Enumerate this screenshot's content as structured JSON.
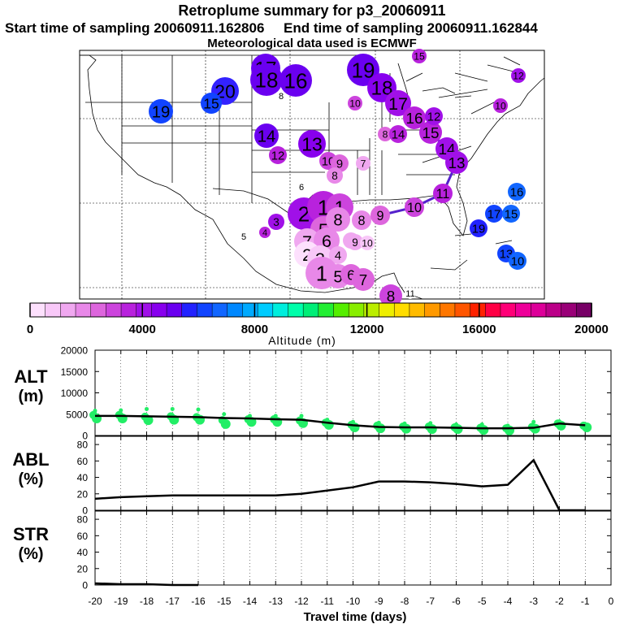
{
  "header": {
    "title": "Retroplume summary for p3_20060911",
    "start_label": "Start time of sampling 20060911.162806",
    "end_label": "End time of sampling 20060911.162844",
    "met_label": "Meteorological data used is ECMWF"
  },
  "colorbar": {
    "ticks": [
      "0",
      "4000",
      "8000",
      "12000",
      "16000",
      "20000"
    ],
    "label": "Altitude (m)",
    "colors": [
      "#fde0fd",
      "#f8c8f8",
      "#f0a8f0",
      "#e888e8",
      "#dd66dd",
      "#cc44dd",
      "#b822dd",
      "#a010e8",
      "#8800ee",
      "#6a00f0",
      "#2222ff",
      "#1144ff",
      "#1166ff",
      "#0088ff",
      "#00aaff",
      "#00ccff",
      "#00eedd",
      "#00ffaa",
      "#00ee77",
      "#22ee33",
      "#55ee00",
      "#88ee00",
      "#bbee00",
      "#eeee00",
      "#ffdd00",
      "#ffbb00",
      "#ff9900",
      "#ff7700",
      "#ff5500",
      "#ff2200",
      "#ff0044",
      "#ff0077",
      "#ee0099",
      "#dd0099",
      "#bb0088",
      "#990077",
      "#770066"
    ]
  },
  "map": {
    "track_points": [
      {
        "label": "19",
        "x": 447,
        "y": 86,
        "r": 20,
        "color": "#6a00f0"
      },
      {
        "label": "18",
        "x": 470,
        "y": 108,
        "r": 18,
        "color": "#8800ee"
      },
      {
        "label": "17",
        "x": 490,
        "y": 127,
        "r": 16,
        "color": "#a010e8"
      },
      {
        "label": "16",
        "x": 510,
        "y": 145,
        "r": 14,
        "color": "#b822dd"
      },
      {
        "label": "15",
        "x": 530,
        "y": 163,
        "r": 14,
        "color": "#b822dd"
      },
      {
        "label": "14",
        "x": 550,
        "y": 183,
        "r": 14,
        "color": "#a010e8"
      },
      {
        "label": "13",
        "x": 562,
        "y": 200,
        "r": 14,
        "color": "#a010e8"
      },
      {
        "label": "11",
        "x": 545,
        "y": 238,
        "r": 12,
        "color": "#b822dd"
      },
      {
        "label": "10",
        "x": 510,
        "y": 255,
        "r": 12,
        "color": "#cc44dd"
      },
      {
        "label": "9",
        "x": 468,
        "y": 265,
        "r": 12,
        "color": "#dd66dd"
      },
      {
        "label": "8",
        "x": 445,
        "y": 271,
        "r": 12,
        "color": "#e888e8"
      }
    ],
    "dots": [
      {
        "label": "17",
        "x": 327,
        "y": 84,
        "r": 18,
        "color": "#6a00f0"
      },
      {
        "label": "18",
        "x": 328,
        "y": 98,
        "r": 20,
        "color": "#6a00f0"
      },
      {
        "label": "16",
        "x": 364,
        "y": 99,
        "r": 20,
        "color": "#6a00f0"
      },
      {
        "label": "20",
        "x": 277,
        "y": 112,
        "r": 17,
        "color": "#3322ff"
      },
      {
        "label": "15",
        "x": 260,
        "y": 127,
        "r": 13,
        "color": "#1144ff"
      },
      {
        "label": "19",
        "x": 198,
        "y": 137,
        "r": 15,
        "color": "#1144ff"
      },
      {
        "label": "8",
        "x": 346,
        "y": 118,
        "r": 4,
        "color": "#ffffff"
      },
      {
        "label": "14",
        "x": 328,
        "y": 167,
        "r": 15,
        "color": "#6a00f0"
      },
      {
        "label": "13",
        "x": 384,
        "y": 177,
        "r": 17,
        "color": "#8800ee"
      },
      {
        "label": "12",
        "x": 342,
        "y": 191,
        "r": 11,
        "color": "#b822dd"
      },
      {
        "label": "10",
        "x": 404,
        "y": 198,
        "r": 11,
        "color": "#cc44dd"
      },
      {
        "label": "9",
        "x": 418,
        "y": 201,
        "r": 11,
        "color": "#dd66dd"
      },
      {
        "label": "8",
        "x": 412,
        "y": 216,
        "r": 10,
        "color": "#e888e8"
      },
      {
        "label": "7",
        "x": 447,
        "y": 201,
        "r": 9,
        "color": "#f0a8f0"
      },
      {
        "label": "6",
        "x": 371,
        "y": 230,
        "r": 5,
        "color": "#ffffff"
      },
      {
        "label": "10",
        "x": 437,
        "y": 127,
        "r": 9,
        "color": "#cc44dd"
      },
      {
        "label": "15",
        "x": 516,
        "y": 69,
        "r": 9,
        "color": "#b822dd"
      },
      {
        "label": "12",
        "x": 638,
        "y": 93,
        "r": 9,
        "color": "#a010e8"
      },
      {
        "label": "10",
        "x": 616,
        "y": 130,
        "r": 9,
        "color": "#b822dd"
      },
      {
        "label": "12",
        "x": 534,
        "y": 143,
        "r": 11,
        "color": "#a010e8"
      },
      {
        "label": "8",
        "x": 474,
        "y": 165,
        "r": 9,
        "color": "#dd66dd"
      },
      {
        "label": "14",
        "x": 490,
        "y": 165,
        "r": 11,
        "color": "#b822dd"
      },
      {
        "label": "16",
        "x": 636,
        "y": 236,
        "r": 11,
        "color": "#1166ff"
      },
      {
        "label": "17",
        "x": 608,
        "y": 263,
        "r": 11,
        "color": "#1144ff"
      },
      {
        "label": "15",
        "x": 629,
        "y": 263,
        "r": 11,
        "color": "#1166ff"
      },
      {
        "label": "19",
        "x": 589,
        "y": 281,
        "r": 11,
        "color": "#2222ff"
      },
      {
        "label": "13",
        "x": 623,
        "y": 312,
        "r": 11,
        "color": "#1144ff"
      },
      {
        "label": "10",
        "x": 637,
        "y": 321,
        "r": 11,
        "color": "#1166ff"
      },
      {
        "label": "2",
        "x": 374,
        "y": 263,
        "r": 20,
        "color": "#a010e8"
      },
      {
        "label": "1",
        "x": 398,
        "y": 255,
        "r": 20,
        "color": "#b822dd"
      },
      {
        "label": "1",
        "x": 418,
        "y": 255,
        "r": 17,
        "color": "#cc44dd"
      },
      {
        "label": "5",
        "x": 398,
        "y": 282,
        "r": 16,
        "color": "#dd66dd"
      },
      {
        "label": "8",
        "x": 416,
        "y": 270,
        "r": 15,
        "color": "#e888e8"
      },
      {
        "label": "3",
        "x": 340,
        "y": 273,
        "r": 10,
        "color": "#a010e8"
      },
      {
        "label": "4",
        "x": 326,
        "y": 286,
        "r": 7,
        "color": "#b822dd"
      },
      {
        "label": "5",
        "x": 300,
        "y": 291,
        "r": 5,
        "color": "#ffffff"
      },
      {
        "label": "7",
        "x": 378,
        "y": 297,
        "r": 16,
        "color": "#f0a8f0"
      },
      {
        "label": "6",
        "x": 402,
        "y": 296,
        "r": 16,
        "color": "#e888e8"
      },
      {
        "label": "8",
        "x": 432,
        "y": 296,
        "r": 10,
        "color": "#f0a8f0"
      },
      {
        "label": "9",
        "x": 437,
        "y": 298,
        "r": 10,
        "color": "#f0a8f0"
      },
      {
        "label": "10",
        "x": 452,
        "y": 299,
        "r": 9,
        "color": "#f8c8f8"
      },
      {
        "label": "2",
        "x": 378,
        "y": 313,
        "r": 16,
        "color": "#fde0fd"
      },
      {
        "label": "3",
        "x": 394,
        "y": 318,
        "r": 16,
        "color": "#f8c8f8"
      },
      {
        "label": "4",
        "x": 416,
        "y": 314,
        "r": 11,
        "color": "#f0a8f0"
      },
      {
        "label": "1",
        "x": 396,
        "y": 336,
        "r": 20,
        "color": "#e888e8"
      },
      {
        "label": "5",
        "x": 416,
        "y": 340,
        "r": 15,
        "color": "#e888e8"
      },
      {
        "label": "6",
        "x": 432,
        "y": 338,
        "r": 13,
        "color": "#dd66dd"
      },
      {
        "label": "7",
        "x": 447,
        "y": 344,
        "r": 14,
        "color": "#dd66dd"
      },
      {
        "label": "8",
        "x": 481,
        "y": 364,
        "r": 14,
        "color": "#cc44dd"
      },
      {
        "label": "11",
        "x": 505,
        "y": 361,
        "r": 7,
        "color": "#ffffff"
      }
    ]
  },
  "chart_data": [
    {
      "type": "scatter",
      "title": "ALT (m)",
      "panel_label": [
        "ALT",
        "(m)"
      ],
      "ylabel": "Altitude (m)",
      "ylim": [
        0,
        20000
      ],
      "yticks": [
        "0",
        "5000",
        "10000",
        "15000",
        "20000"
      ],
      "x": [
        -20,
        -19,
        -18,
        -17,
        -16,
        -15,
        -14,
        -13,
        -12,
        -11,
        -10,
        -9,
        -8,
        -7,
        -6,
        -5,
        -4,
        -3,
        -2,
        -1
      ],
      "series": [
        {
          "name": "median altitude",
          "kind": "line",
          "values": [
            4600,
            4600,
            4500,
            4400,
            4300,
            4100,
            4000,
            3800,
            3700,
            3000,
            2400,
            2000,
            1900,
            1900,
            1800,
            1700,
            1700,
            1800,
            2800,
            2400
          ]
        },
        {
          "name": "particle altitudes",
          "kind": "points",
          "values": [
            [
              5800,
              4800,
              4000
            ],
            [
              5900,
              4800,
              4000
            ],
            [
              6200,
              4400,
              3600
            ],
            [
              6200,
              4500,
              3700
            ],
            [
              6100,
              4300,
              3700
            ],
            [
              5000,
              3600,
              2700
            ],
            [
              4600,
              3800,
              3200
            ],
            [
              4600,
              3800,
              3200
            ],
            [
              4600,
              3500,
              2900
            ],
            [
              3700,
              3000,
              2500
            ],
            [
              3200,
              2500,
              1900
            ],
            [
              3000,
              2300,
              1700
            ],
            [
              2800,
              2100,
              1600
            ],
            [
              2900,
              2100,
              1500
            ],
            [
              2600,
              1900,
              1500
            ],
            [
              2600,
              1800,
              1300
            ],
            [
              2300,
              1700,
              1200
            ],
            [
              3200,
              2000,
              1600
            ],
            [
              3300,
              2800,
              2300
            ],
            [
              2700,
              2300,
              1900
            ]
          ]
        }
      ]
    },
    {
      "type": "line",
      "title": "ABL (%)",
      "panel_label": [
        "ABL",
        "(%)"
      ],
      "ylim": [
        0,
        90
      ],
      "yticks": [
        "0",
        "20",
        "40",
        "60",
        "80"
      ],
      "x": [
        -20,
        -19,
        -18,
        -17,
        -16,
        -15,
        -14,
        -13,
        -12,
        -11,
        -10,
        -9,
        -8,
        -7,
        -6,
        -5,
        -4,
        -3,
        -2,
        -1
      ],
      "values": [
        14,
        16,
        17,
        18,
        18,
        18,
        18,
        18,
        20,
        24,
        28,
        35,
        35,
        34,
        32,
        29,
        31,
        61,
        0,
        0
      ]
    },
    {
      "type": "line",
      "title": "STR (%)",
      "panel_label": [
        "STR",
        "(%)"
      ],
      "ylim": [
        0,
        90
      ],
      "yticks": [
        "0",
        "20",
        "40",
        "60",
        "80"
      ],
      "x": [
        -20,
        -19,
        -18,
        -17,
        -16
      ],
      "values": [
        2,
        1,
        1,
        0,
        0
      ]
    }
  ],
  "xaxis": {
    "title": "Travel time (days)",
    "ticks": [
      "-20",
      "-19",
      "-18",
      "-17",
      "-16",
      "-15",
      "-14",
      "-13",
      "-12",
      "-11",
      "-10",
      "-9",
      "-8",
      "-7",
      "-6",
      "-5",
      "-4",
      "-3",
      "-2",
      "-1",
      "0"
    ]
  }
}
